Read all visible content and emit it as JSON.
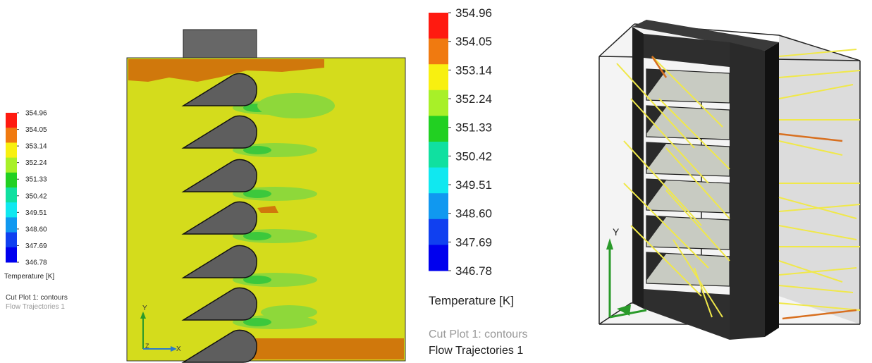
{
  "legend": {
    "values": [
      "354.96",
      "354.05",
      "353.14",
      "352.24",
      "351.33",
      "350.42",
      "349.51",
      "348.60",
      "347.69",
      "346.78"
    ],
    "colors": [
      "#ff1a10",
      "#f07a10",
      "#f8f010",
      "#a8f028",
      "#22d022",
      "#10e0a0",
      "#10e8f0",
      "#1098f0",
      "#1040f0",
      "#0000ee"
    ],
    "title": "Temperature [K]",
    "plot_label": "Cut Plot 1: contours",
    "trajectory_label": "Flow Trajectories 1"
  },
  "axes": {
    "x": "X",
    "y": "Y",
    "z": "Z"
  },
  "colors": {
    "background_field": "#d4dc1c",
    "hot_region": "#d0780c",
    "cool_region": "#8ed83a",
    "coolest_region": "#3cc83c",
    "fin": "#5e5e5e",
    "heatsink_frame": "#2a2a2a",
    "trajectory": "#f0e84a",
    "trajectory_hot": "#d87020"
  }
}
